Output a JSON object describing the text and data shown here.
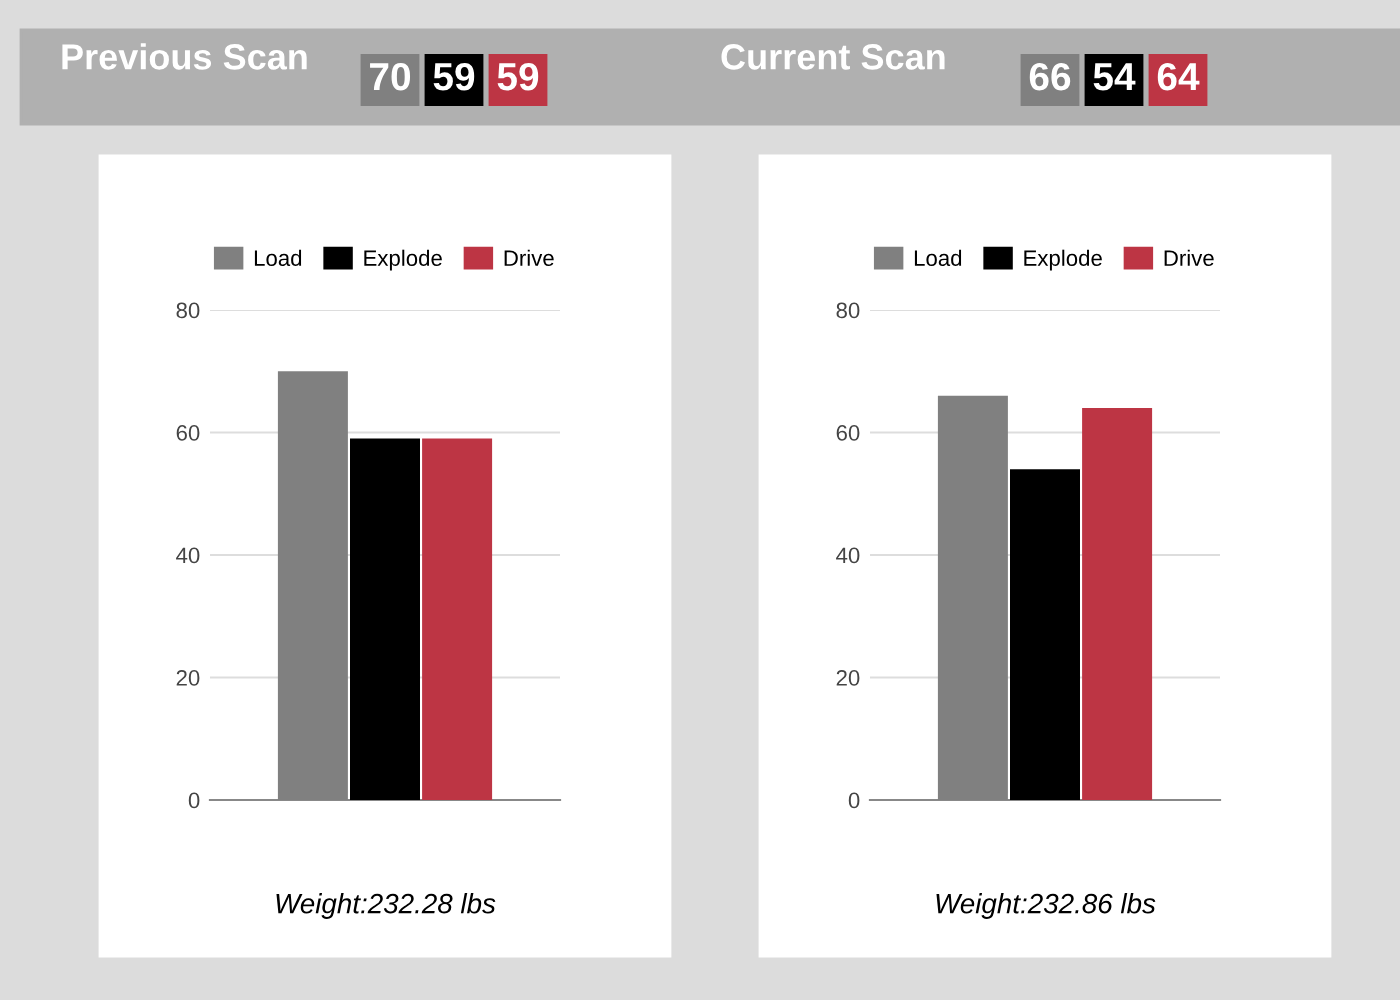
{
  "chart_data": [
    {
      "type": "bar",
      "title": "Previous Scan",
      "categories": [
        null
      ],
      "xlabel": "Weight:232.28 lbs",
      "ylim": [
        0,
        80
      ],
      "yticks": [
        0,
        20,
        40,
        60,
        80
      ],
      "grid": "y",
      "legend": "top",
      "annotations": [
        "70",
        "59",
        "59"
      ],
      "series": [
        {
          "name": "Load",
          "color": "#808080",
          "values": [
            70
          ]
        },
        {
          "name": "Explode",
          "color": "#000000",
          "values": [
            59
          ]
        },
        {
          "name": "Drive",
          "color": "#bd3544",
          "values": [
            59
          ]
        }
      ]
    },
    {
      "type": "bar",
      "title": "Current Scan",
      "categories": [
        null
      ],
      "xlabel": "Weight:232.86 lbs",
      "ylim": [
        0,
        80
      ],
      "yticks": [
        0,
        20,
        40,
        60,
        80
      ],
      "grid": "y",
      "legend": "top",
      "annotations": [
        "66",
        "54",
        "64"
      ],
      "series": [
        {
          "name": "Load",
          "color": "#808080",
          "values": [
            66
          ]
        },
        {
          "name": "Explode",
          "color": "#000000",
          "values": [
            54
          ]
        },
        {
          "name": "Drive",
          "color": "#bd3544",
          "values": [
            64
          ]
        }
      ]
    }
  ]
}
